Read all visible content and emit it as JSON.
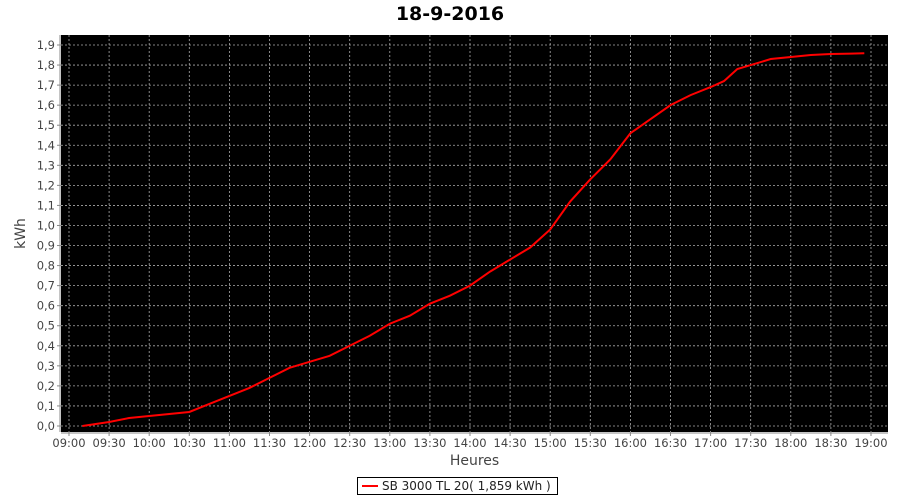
{
  "chart_data": {
    "type": "line",
    "title": "18-9-2016",
    "xlabel": "Heures",
    "ylabel": "kWh",
    "xlim": [
      "09:00",
      "19:00"
    ],
    "ylim": [
      0,
      1.9
    ],
    "grid": true,
    "background": "#000000",
    "legend_position": "bottom",
    "x_ticks": [
      "09:00",
      "09:30",
      "10:00",
      "10:30",
      "11:00",
      "11:30",
      "12:00",
      "12:30",
      "13:00",
      "13:30",
      "14:00",
      "14:30",
      "15:00",
      "15:30",
      "16:00",
      "16:30",
      "17:00",
      "17:30",
      "18:00",
      "18:30",
      "19:00"
    ],
    "y_ticks": [
      "0,0",
      "0,1",
      "0,2",
      "0,3",
      "0,4",
      "0,5",
      "0,6",
      "0,7",
      "0,8",
      "0,9",
      "1,0",
      "1,1",
      "1,2",
      "1,3",
      "1,4",
      "1,5",
      "1,6",
      "1,7",
      "1,8",
      "1,9"
    ],
    "series": [
      {
        "name": "SB 3000 TL 20( 1,859 kWh )",
        "color": "#ff0000",
        "x": [
          "09:10",
          "09:30",
          "09:45",
          "10:00",
          "10:15",
          "10:30",
          "10:45",
          "11:00",
          "11:15",
          "11:30",
          "11:45",
          "12:00",
          "12:15",
          "12:30",
          "12:45",
          "13:00",
          "13:15",
          "13:30",
          "13:45",
          "14:00",
          "14:15",
          "14:30",
          "14:45",
          "15:00",
          "15:15",
          "15:30",
          "15:45",
          "16:00",
          "16:15",
          "16:30",
          "16:45",
          "17:00",
          "17:10",
          "17:20",
          "17:30",
          "17:45",
          "18:00",
          "18:15",
          "18:30",
          "18:45",
          "18:55"
        ],
        "y": [
          0.0,
          0.02,
          0.04,
          0.05,
          0.06,
          0.07,
          0.11,
          0.15,
          0.19,
          0.24,
          0.29,
          0.32,
          0.35,
          0.4,
          0.45,
          0.51,
          0.55,
          0.61,
          0.65,
          0.7,
          0.77,
          0.83,
          0.89,
          0.98,
          1.12,
          1.23,
          1.33,
          1.46,
          1.53,
          1.6,
          1.65,
          1.69,
          1.72,
          1.78,
          1.8,
          1.83,
          1.84,
          1.85,
          1.855,
          1.857,
          1.859
        ]
      }
    ]
  }
}
